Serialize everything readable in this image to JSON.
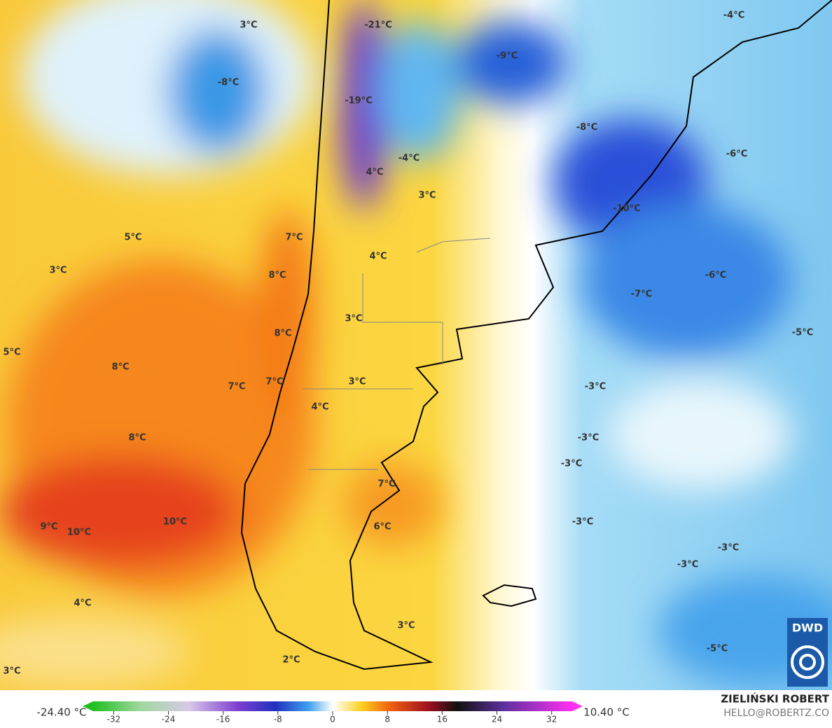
{
  "map": {
    "labels": [
      "-21°C",
      "-9°C",
      "-4°C",
      "3°C",
      "-8°C",
      "-19°C",
      "-8°C",
      "-6°C",
      "4°C",
      "-4°C",
      "3°C",
      "-10°C",
      "5°C",
      "7°C",
      "4°C",
      "3°C",
      "8°C",
      "-6°C",
      "-7°C",
      "3°C",
      "8°C",
      "-5°C",
      "5°C",
      "8°C",
      "7°C",
      "7°C",
      "3°C",
      "-3°C",
      "4°C",
      "8°C",
      "-3°C",
      "-3°C",
      "7°C",
      "-3°C",
      "10°C",
      "9°C",
      "10°C",
      "6°C",
      "-3°C",
      "-3°C",
      "4°C",
      "3°C",
      "-5°C",
      "2°C",
      "3°C"
    ]
  },
  "colorbar": {
    "min_label": "-24.40 °C",
    "max_label": "10.40 °C",
    "clim": [
      -35,
      35
    ],
    "ticks": [
      -32,
      -24,
      -16,
      -8,
      0,
      8,
      16,
      24,
      32
    ]
  },
  "footer": {
    "author": "ZIELIŃSKI ROBERT",
    "contact": "HELLO@ROBERTZ.CO",
    "logo": "DWD"
  }
}
